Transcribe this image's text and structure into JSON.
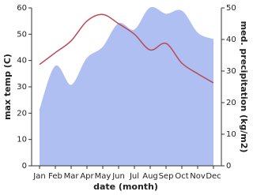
{
  "chart_data": {
    "type": "line-area",
    "x_label": "date (month)",
    "y_label": "max temp (C)",
    "y2_label": "med. precipitation (kg/m2)",
    "categories": [
      "Jan",
      "Feb",
      "Mar",
      "Apr",
      "May",
      "Jun",
      "Jul",
      "Aug",
      "Sep",
      "Oct",
      "Nov",
      "Dec"
    ],
    "series": [
      {
        "name": "max temp",
        "color": "#b94a55",
        "values": [
          38.5,
          43,
          47.5,
          55,
          57.5,
          54,
          50,
          44,
          46.5,
          39,
          35,
          31.5
        ]
      },
      {
        "name": "precipitation",
        "color": "#b0bff2",
        "axis": "y2",
        "values": [
          17.5,
          31.5,
          25.5,
          34,
          37.5,
          45,
          43,
          50,
          48,
          49,
          42,
          40
        ]
      }
    ],
    "ylim": [
      0,
      60
    ],
    "yticks": [
      0,
      10,
      20,
      30,
      40,
      50,
      60
    ],
    "y2lim": [
      0,
      50
    ],
    "y2ticks": [
      0,
      10,
      20,
      30,
      40,
      50
    ]
  }
}
